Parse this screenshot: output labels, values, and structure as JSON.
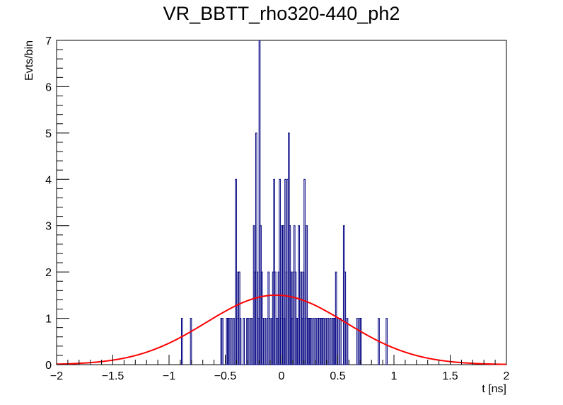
{
  "chart_data": {
    "type": "histogram",
    "title": "VR_BBTT_rho320-440_ph2",
    "xlabel": "t [ns]",
    "ylabel": "Evts/bin",
    "xlim": [
      -2,
      2
    ],
    "ylim": [
      0,
      7
    ],
    "xticks": [
      -2,
      -1.5,
      -1,
      -0.5,
      0,
      0.5,
      1,
      1.5,
      2
    ],
    "xtick_labels": [
      "−2",
      "−1.5",
      "−1",
      "−0.5",
      "0",
      "0.5",
      "1",
      "1.5",
      "2"
    ],
    "yticks": [
      0,
      1,
      2,
      3,
      4,
      5,
      6,
      7
    ],
    "ytick_labels": [
      "0",
      "1",
      "2",
      "3",
      "4",
      "5",
      "6",
      "7"
    ],
    "bin_width": 0.01,
    "histogram_color": "#000080",
    "fit_color": "#ff0000",
    "grid": false,
    "bins": [
      {
        "x": -0.89,
        "y": 1
      },
      {
        "x": -0.81,
        "y": 1
      },
      {
        "x": -0.54,
        "y": 1
      },
      {
        "x": -0.53,
        "y": 1
      },
      {
        "x": -0.49,
        "y": 1
      },
      {
        "x": -0.48,
        "y": 1
      },
      {
        "x": -0.47,
        "y": 1
      },
      {
        "x": -0.45,
        "y": 1
      },
      {
        "x": -0.43,
        "y": 1
      },
      {
        "x": -0.41,
        "y": 4
      },
      {
        "x": -0.4,
        "y": 1
      },
      {
        "x": -0.39,
        "y": 2
      },
      {
        "x": -0.38,
        "y": 2
      },
      {
        "x": -0.37,
        "y": 1
      },
      {
        "x": -0.34,
        "y": 1
      },
      {
        "x": -0.31,
        "y": 1
      },
      {
        "x": -0.3,
        "y": 1
      },
      {
        "x": -0.28,
        "y": 1
      },
      {
        "x": -0.27,
        "y": 1
      },
      {
        "x": -0.25,
        "y": 3
      },
      {
        "x": -0.24,
        "y": 2
      },
      {
        "x": -0.23,
        "y": 5
      },
      {
        "x": -0.22,
        "y": 2
      },
      {
        "x": -0.21,
        "y": 1
      },
      {
        "x": -0.2,
        "y": 7
      },
      {
        "x": -0.19,
        "y": 3
      },
      {
        "x": -0.18,
        "y": 2
      },
      {
        "x": -0.17,
        "y": 1
      },
      {
        "x": -0.15,
        "y": 1
      },
      {
        "x": -0.13,
        "y": 1
      },
      {
        "x": -0.12,
        "y": 2
      },
      {
        "x": -0.11,
        "y": 1
      },
      {
        "x": -0.09,
        "y": 1
      },
      {
        "x": -0.08,
        "y": 2
      },
      {
        "x": -0.07,
        "y": 4
      },
      {
        "x": -0.06,
        "y": 2
      },
      {
        "x": -0.05,
        "y": 1
      },
      {
        "x": -0.04,
        "y": 1
      },
      {
        "x": -0.03,
        "y": 2
      },
      {
        "x": -0.02,
        "y": 4
      },
      {
        "x": -0.01,
        "y": 1
      },
      {
        "x": 0.0,
        "y": 3
      },
      {
        "x": 0.01,
        "y": 3
      },
      {
        "x": 0.02,
        "y": 1
      },
      {
        "x": 0.03,
        "y": 4
      },
      {
        "x": 0.04,
        "y": 2
      },
      {
        "x": 0.05,
        "y": 4
      },
      {
        "x": 0.06,
        "y": 5
      },
      {
        "x": 0.07,
        "y": 3
      },
      {
        "x": 0.08,
        "y": 2
      },
      {
        "x": 0.09,
        "y": 1
      },
      {
        "x": 0.1,
        "y": 2
      },
      {
        "x": 0.11,
        "y": 3
      },
      {
        "x": 0.12,
        "y": 2
      },
      {
        "x": 0.13,
        "y": 1
      },
      {
        "x": 0.14,
        "y": 1
      },
      {
        "x": 0.15,
        "y": 3
      },
      {
        "x": 0.17,
        "y": 2
      },
      {
        "x": 0.18,
        "y": 1
      },
      {
        "x": 0.19,
        "y": 2
      },
      {
        "x": 0.2,
        "y": 4
      },
      {
        "x": 0.21,
        "y": 1
      },
      {
        "x": 0.22,
        "y": 3
      },
      {
        "x": 0.23,
        "y": 1
      },
      {
        "x": 0.24,
        "y": 1
      },
      {
        "x": 0.25,
        "y": 1
      },
      {
        "x": 0.26,
        "y": 1
      },
      {
        "x": 0.28,
        "y": 1
      },
      {
        "x": 0.3,
        "y": 1
      },
      {
        "x": 0.32,
        "y": 1
      },
      {
        "x": 0.33,
        "y": 1
      },
      {
        "x": 0.34,
        "y": 1
      },
      {
        "x": 0.35,
        "y": 1
      },
      {
        "x": 0.36,
        "y": 1
      },
      {
        "x": 0.37,
        "y": 1
      },
      {
        "x": 0.39,
        "y": 1
      },
      {
        "x": 0.41,
        "y": 1
      },
      {
        "x": 0.43,
        "y": 1
      },
      {
        "x": 0.45,
        "y": 1
      },
      {
        "x": 0.46,
        "y": 1
      },
      {
        "x": 0.47,
        "y": 1
      },
      {
        "x": 0.48,
        "y": 2
      },
      {
        "x": 0.5,
        "y": 1
      },
      {
        "x": 0.52,
        "y": 1
      },
      {
        "x": 0.55,
        "y": 3
      },
      {
        "x": 0.56,
        "y": 2
      },
      {
        "x": 0.58,
        "y": 1
      },
      {
        "x": 0.67,
        "y": 1
      },
      {
        "x": 0.69,
        "y": 1
      },
      {
        "x": 0.7,
        "y": 1
      },
      {
        "x": 0.86,
        "y": 1
      },
      {
        "x": 0.93,
        "y": 1
      }
    ],
    "fit": {
      "type": "gaussian",
      "amplitude": 1.5,
      "mean": -0.05,
      "sigma": 0.62
    }
  }
}
